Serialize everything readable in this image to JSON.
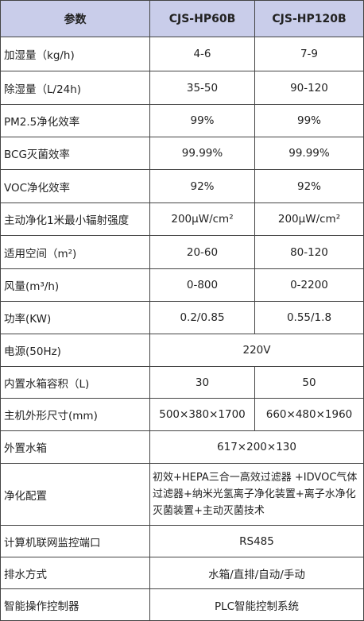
{
  "table": {
    "header": [
      "参数",
      "CJS-HP60B",
      "CJS-HP120B"
    ],
    "rows": [
      [
        "加湿量（kg/h)",
        "4-6",
        "7-9"
      ],
      [
        "除湿量（L/24h)",
        "35-50",
        "90-120"
      ],
      [
        "PM2.5净化效率",
        "99%",
        "99%"
      ],
      [
        "BCG灭菌效率",
        "99.99%",
        "99.99%"
      ],
      [
        "VOC净化效率",
        "92%",
        "92%"
      ],
      [
        "主动净化1米最小辐射强度",
        "200μW/cm²",
        "200μW/cm²"
      ],
      [
        "适用空间（m²)",
        "20-60",
        "80-120"
      ],
      [
        "风量(m³/h)",
        "0-800",
        "0-2200"
      ],
      [
        "功率(KW)",
        "0.2/0.85",
        "0.55/1.8"
      ],
      [
        "电源(50Hz)",
        "220V"
      ],
      [
        "内置水箱容积（L)",
        "30",
        "50"
      ],
      [
        "主机外形尺寸(mm)",
        "500×380×1700",
        "660×480×1960"
      ],
      [
        "外置水箱",
        "617×200×130"
      ],
      [
        "净化配置",
        "初效+HEPA三合一高效过滤器 +IDVOC气体过滤器+纳米光氢离子净化装置+离子水净化灭菌装置+主动灭菌技术"
      ],
      [
        "计算机联网监控端口",
        "RS485"
      ],
      [
        "排水方式",
        "水箱/直排/自动/手动"
      ],
      [
        "智能操作控制器",
        "PLC智能控制系统"
      ]
    ]
  }
}
